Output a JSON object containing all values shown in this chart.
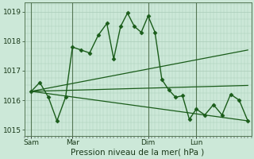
{
  "xlabel": "Pression niveau de la mer( hPa )",
  "background_color": "#cce8d8",
  "grid_color": "#aaccb8",
  "line_color": "#1a5c1a",
  "ylim": [
    1014.8,
    1019.3
  ],
  "yticks": [
    1015,
    1016,
    1017,
    1018,
    1019
  ],
  "xtick_labels": [
    "Sam",
    "Mar",
    "Dim",
    "Lun"
  ],
  "xtick_positions": [
    8,
    56,
    144,
    200
  ],
  "xlim": [
    0,
    264
  ],
  "vline_positions": [
    8,
    56,
    144,
    200
  ],
  "vline_color": "#557755",
  "series_main": {
    "x": [
      8,
      18,
      28,
      38,
      48,
      56,
      66,
      76,
      86,
      96,
      104,
      112,
      120,
      128,
      136,
      144,
      152,
      160,
      168,
      176,
      184,
      192,
      200,
      210,
      220,
      230,
      240,
      250,
      260
    ],
    "y": [
      1016.3,
      1016.6,
      1016.1,
      1015.3,
      1016.1,
      1017.8,
      1017.7,
      1017.6,
      1018.2,
      1018.6,
      1017.4,
      1018.5,
      1018.95,
      1018.5,
      1018.3,
      1018.85,
      1018.3,
      1016.7,
      1016.35,
      1016.1,
      1016.15,
      1015.35,
      1015.7,
      1015.5,
      1015.85,
      1015.5,
      1016.2,
      1016.0,
      1015.3
    ],
    "color": "#1a5c1a",
    "linewidth": 1.0,
    "markersize": 2.5
  },
  "series_trends": [
    {
      "x": [
        8,
        260
      ],
      "y": [
        1016.3,
        1017.7
      ]
    },
    {
      "x": [
        8,
        260
      ],
      "y": [
        1016.3,
        1016.5
      ]
    },
    {
      "x": [
        8,
        260
      ],
      "y": [
        1016.3,
        1015.3
      ]
    }
  ],
  "trend_color": "#1a5c1a",
  "trend_linewidth": 0.9,
  "label_fontsize": 6.5,
  "tick_fontsize": 6.5,
  "xlabel_fontsize": 7.5
}
